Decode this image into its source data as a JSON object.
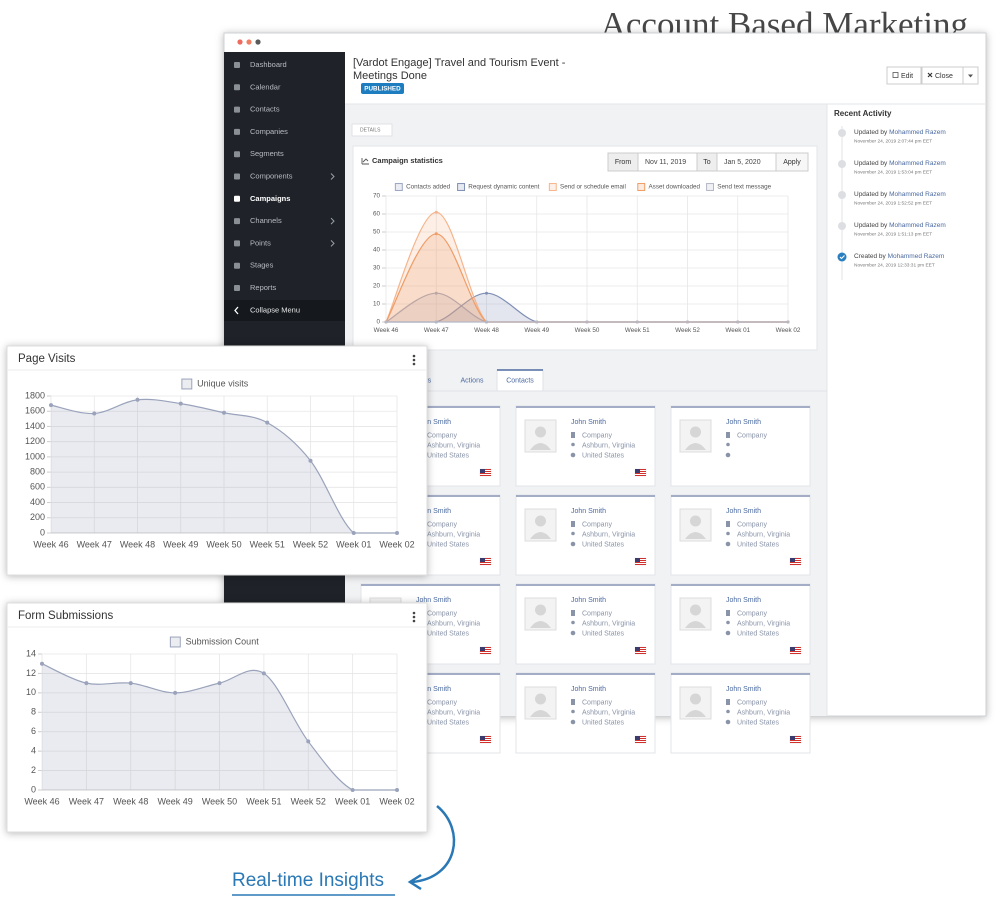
{
  "page_title": "Account Based Marketing",
  "sidebar": {
    "active": 6,
    "items": [
      {
        "label": "Dashboard",
        "submenu": false
      },
      {
        "label": "Calendar",
        "submenu": false
      },
      {
        "label": "Contacts",
        "submenu": false
      },
      {
        "label": "Companies",
        "submenu": false
      },
      {
        "label": "Segments",
        "submenu": false
      },
      {
        "label": "Components",
        "submenu": true
      },
      {
        "label": "Campaigns",
        "submenu": false
      },
      {
        "label": "Channels",
        "submenu": true
      },
      {
        "label": "Points",
        "submenu": true
      },
      {
        "label": "Stages",
        "submenu": false
      },
      {
        "label": "Reports",
        "submenu": false
      }
    ],
    "collapse": "Collapse Menu"
  },
  "header": {
    "title_lines": [
      "[Vardot Engage] Travel and Tourism Event -",
      "Meetings Done"
    ],
    "status": "PUBLISHED",
    "edit": "Edit",
    "close": "Close"
  },
  "details_toggle": "DETAILS",
  "stats_panel": {
    "from_label": "From",
    "from": "Nov 11, 2019",
    "to_label": "To",
    "to": "Jan 5, 2020",
    "apply": "Apply"
  },
  "tabs": {
    "active": 2,
    "items": [
      "Decisions",
      "Actions",
      "Contacts"
    ]
  },
  "contacts": [
    {
      "name": "John Smith",
      "company": "Company",
      "location": "Ashburn, Virginia",
      "country": "United States"
    },
    {
      "name": "John Smith",
      "company": "Company",
      "location": "Ashburn, Virginia",
      "country": "United States"
    },
    {
      "name": "John Smith",
      "company": "Company",
      "location": null,
      "country": null
    },
    {
      "name": "John Smith",
      "company": "Company",
      "location": "Ashburn, Virginia",
      "country": "United States"
    },
    {
      "name": "John Smith",
      "company": "Company",
      "location": "Ashburn, Virginia",
      "country": "United States"
    },
    {
      "name": "John Smith",
      "company": "Company",
      "location": "Ashburn, Virginia",
      "country": "United States"
    },
    {
      "name": "John Smith",
      "company": "Company",
      "location": "Ashburn, Virginia",
      "country": "United States"
    },
    {
      "name": "John Smith",
      "company": "Company",
      "location": "Ashburn, Virginia",
      "country": "United States"
    },
    {
      "name": "John Smith",
      "company": "Company",
      "location": "Ashburn, Virginia",
      "country": "United States"
    },
    {
      "name": "John Smith",
      "company": "Company",
      "location": "Ashburn, Virginia",
      "country": "United States"
    },
    {
      "name": "John Smith",
      "company": "Company",
      "location": "Ashburn, Virginia",
      "country": "United States"
    },
    {
      "name": "John Smith",
      "company": "Company",
      "location": "Ashburn, Virginia",
      "country": "United States"
    }
  ],
  "recent_activity": {
    "title": "Recent Activity",
    "items": [
      {
        "action": "Updated by",
        "user": "Mohammed Razem",
        "time": "November 24, 2019 2:07:44 pm EET",
        "done": false
      },
      {
        "action": "Updated by",
        "user": "Mohammed Razem",
        "time": "November 24, 2019 1:53:04 pm EET",
        "done": false
      },
      {
        "action": "Updated by",
        "user": "Mohammed Razem",
        "time": "November 24, 2019 1:52:52 pm EET",
        "done": false
      },
      {
        "action": "Updated by",
        "user": "Mohammed Razem",
        "time": "November 24, 2019 1:51:13 pm EET",
        "done": false
      },
      {
        "action": "Created by",
        "user": "Mohammed Razem",
        "time": "November 24, 2019 12:33:31 pm EET",
        "done": true
      }
    ]
  },
  "chart_data": [
    {
      "type": "area",
      "title": "Campaign statistics",
      "categories": [
        "Week 46",
        "Week 47",
        "Week 48",
        "Week 49",
        "Week 50",
        "Week 51",
        "Week 52",
        "Week 01",
        "Week 02"
      ],
      "series": [
        {
          "name": "Contacts added",
          "color": "#9aa6c4",
          "values": [
            0,
            16,
            0,
            0,
            0,
            0,
            0,
            0,
            0
          ]
        },
        {
          "name": "Request dynamic content",
          "color": "#7f8fb5",
          "values": [
            0,
            0,
            16,
            0,
            0,
            0,
            0,
            0,
            0
          ]
        },
        {
          "name": "Send or schedule email",
          "color": "#f5b48c",
          "values": [
            0,
            61,
            0,
            0,
            0,
            0,
            0,
            0,
            0
          ]
        },
        {
          "name": "Asset downloaded",
          "color": "#ef9c66",
          "values": [
            0,
            49,
            0,
            0,
            0,
            0,
            0,
            0,
            0
          ]
        },
        {
          "name": "Send text message",
          "color": "#b4b8c6",
          "values": [
            0,
            0,
            0,
            0,
            0,
            0,
            0,
            0,
            0
          ]
        }
      ],
      "ylim": [
        0,
        70
      ],
      "yticks": [
        0,
        10,
        20,
        30,
        40,
        50,
        60,
        70
      ],
      "grid": true
    },
    {
      "type": "area",
      "title": "Page Visits",
      "categories": [
        "Week 46",
        "Week 47",
        "Week 48",
        "Week 49",
        "Week 50",
        "Week 51",
        "Week 52",
        "Week 01",
        "Week 02"
      ],
      "series": [
        {
          "name": "Unique visits",
          "color": "#9aa3bb",
          "values": [
            1680,
            1570,
            1750,
            1700,
            1580,
            1450,
            950,
            0,
            0
          ]
        }
      ],
      "ylim": [
        0,
        1800
      ],
      "yticks": [
        0,
        200,
        400,
        600,
        800,
        1000,
        1200,
        1400,
        1600,
        1800
      ],
      "grid": true
    },
    {
      "type": "area",
      "title": "Form Submissions",
      "categories": [
        "Week 46",
        "Week 47",
        "Week 48",
        "Week 49",
        "Week 50",
        "Week 51",
        "Week 52",
        "Week 01",
        "Week 02"
      ],
      "series": [
        {
          "name": "Submission Count",
          "color": "#9aa3bb",
          "values": [
            13,
            11,
            11,
            10,
            11,
            12,
            5,
            0,
            0
          ]
        }
      ],
      "ylim": [
        0,
        14
      ],
      "yticks": [
        0,
        2,
        4,
        6,
        8,
        10,
        12,
        14
      ],
      "grid": true
    }
  ],
  "callout": "Real-time Insights"
}
